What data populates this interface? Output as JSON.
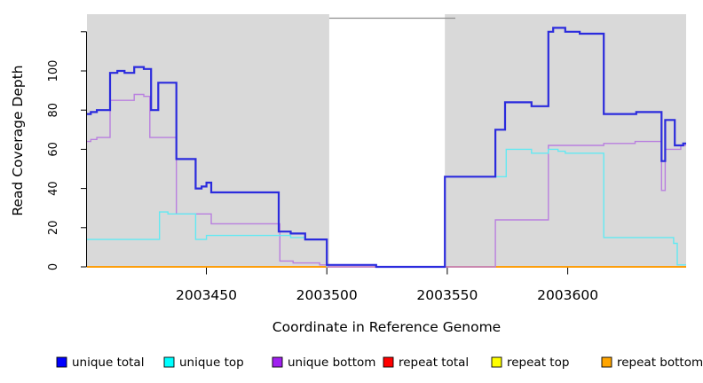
{
  "chart_data": {
    "type": "line",
    "subtype": "step",
    "title": "",
    "xlabel": "Coordinate in Reference Genome",
    "ylabel": "Read Coverage Depth",
    "xlim": [
      2003400.4,
      2003649.2
    ],
    "ylim": [
      0,
      128.9
    ],
    "x_ticks": [
      2003450,
      2003500,
      2003550,
      2003600
    ],
    "x_tick_labels": [
      "2003450",
      "2003500",
      "2003550",
      "2003600"
    ],
    "y_ticks": [
      0,
      20,
      40,
      60,
      80,
      100,
      120
    ],
    "y_tick_labels": [
      "0",
      "20",
      "40",
      "60",
      "80",
      "100",
      ""
    ],
    "grid": "off",
    "panel_bg": "#d9d9d9",
    "masked_region": {
      "from": 2003501,
      "to": 2003549,
      "color": "#ffffff",
      "border_color": "#8e8e8e"
    },
    "legend_position": "bottom",
    "legend": [
      {
        "label": "unique total",
        "color": "#0000ff"
      },
      {
        "label": "unique top",
        "color": "#00ffff"
      },
      {
        "label": "unique bottom",
        "color": "#a020f0"
      },
      {
        "label": "repeat total",
        "color": "#ff0000"
      },
      {
        "label": "repeat top",
        "color": "#ffff00"
      },
      {
        "label": "repeat bottom",
        "color": "#ffa500"
      }
    ],
    "series": [
      {
        "key": "repeat-total",
        "name": "repeat total",
        "color": "#e04444",
        "width": 1.4,
        "segments": [
          [
            [
              2003400.4,
              0
            ],
            [
              2003649.2,
              0
            ]
          ]
        ]
      },
      {
        "key": "repeat-top",
        "name": "repeat top",
        "color": "#ffff00",
        "width": 1.2,
        "segments": [
          [
            [
              2003400.4,
              0
            ],
            [
              2003649.2,
              0
            ]
          ]
        ]
      },
      {
        "key": "repeat-bottom",
        "name": "repeat bottom",
        "color": "#ff9d00",
        "width": 1.8,
        "segments": [
          [
            [
              2003400.4,
              0
            ],
            [
              2003501,
              0
            ]
          ],
          [
            [
              2003549,
              0
            ],
            [
              2003649.2,
              0
            ]
          ]
        ]
      },
      {
        "key": "unique-bottom",
        "name": "unique bottom",
        "color": "#b97fdf",
        "width": 1.4,
        "segments": [
          [
            [
              2003400.4,
              64
            ],
            [
              2003402,
              65
            ],
            [
              2003404.5,
              66
            ],
            [
              2003410,
              85
            ],
            [
              2003420,
              88
            ],
            [
              2003424,
              87
            ],
            [
              2003426.5,
              66
            ],
            [
              2003437.5,
              27
            ],
            [
              2003452,
              22
            ],
            [
              2003480.5,
              3
            ],
            [
              2003486,
              2
            ],
            [
              2003497,
              1
            ],
            [
              2003500,
              0
            ],
            [
              2003570,
              24
            ],
            [
              2003592,
              62
            ],
            [
              2003615,
              63
            ],
            [
              2003628,
              64
            ],
            [
              2003639,
              39
            ],
            [
              2003640.5,
              60
            ],
            [
              2003647,
              62
            ],
            [
              2003649.2,
              62
            ]
          ]
        ]
      },
      {
        "key": "unique-top",
        "name": "unique top",
        "color": "#63e9f2",
        "width": 1.4,
        "segments": [
          [
            [
              2003400.4,
              14
            ],
            [
              2003430.5,
              28
            ],
            [
              2003434,
              27
            ],
            [
              2003445.5,
              14
            ],
            [
              2003450,
              16
            ],
            [
              2003485,
              15
            ],
            [
              2003491,
              14
            ],
            [
              2003500,
              0
            ]
          ],
          [
            [
              2003549,
              46
            ],
            [
              2003574.5,
              60
            ],
            [
              2003585,
              58
            ],
            [
              2003592,
              60
            ],
            [
              2003596,
              59
            ],
            [
              2003599,
              58
            ],
            [
              2003615,
              15
            ],
            [
              2003644,
              12
            ],
            [
              2003645.5,
              1
            ],
            [
              2003649.2,
              1
            ]
          ]
        ]
      },
      {
        "key": "unique-total",
        "name": "unique total",
        "color": "#2b2bdd",
        "width": 2.2,
        "segments": [
          [
            [
              2003400.4,
              78
            ],
            [
              2003402,
              79
            ],
            [
              2003404.5,
              80
            ],
            [
              2003410,
              99
            ],
            [
              2003413,
              100
            ],
            [
              2003416,
              99
            ],
            [
              2003420,
              102
            ],
            [
              2003424,
              101
            ],
            [
              2003427,
              80
            ],
            [
              2003430,
              94
            ],
            [
              2003437.5,
              55
            ],
            [
              2003445.5,
              40
            ],
            [
              2003448,
              41
            ],
            [
              2003450,
              43
            ],
            [
              2003452,
              38
            ],
            [
              2003480,
              18
            ],
            [
              2003485,
              17
            ],
            [
              2003491,
              14
            ],
            [
              2003500,
              1
            ],
            [
              2003520.5,
              0
            ],
            [
              2003549,
              46
            ],
            [
              2003570,
              70
            ],
            [
              2003574,
              84
            ],
            [
              2003585,
              82
            ],
            [
              2003592,
              120
            ],
            [
              2003594,
              122
            ],
            [
              2003599,
              120
            ],
            [
              2003605,
              119
            ],
            [
              2003615,
              78
            ],
            [
              2003628.5,
              79
            ],
            [
              2003639,
              54
            ],
            [
              2003640.5,
              75
            ],
            [
              2003644.5,
              62
            ],
            [
              2003648,
              63
            ],
            [
              2003649.2,
              63
            ]
          ]
        ]
      }
    ]
  }
}
